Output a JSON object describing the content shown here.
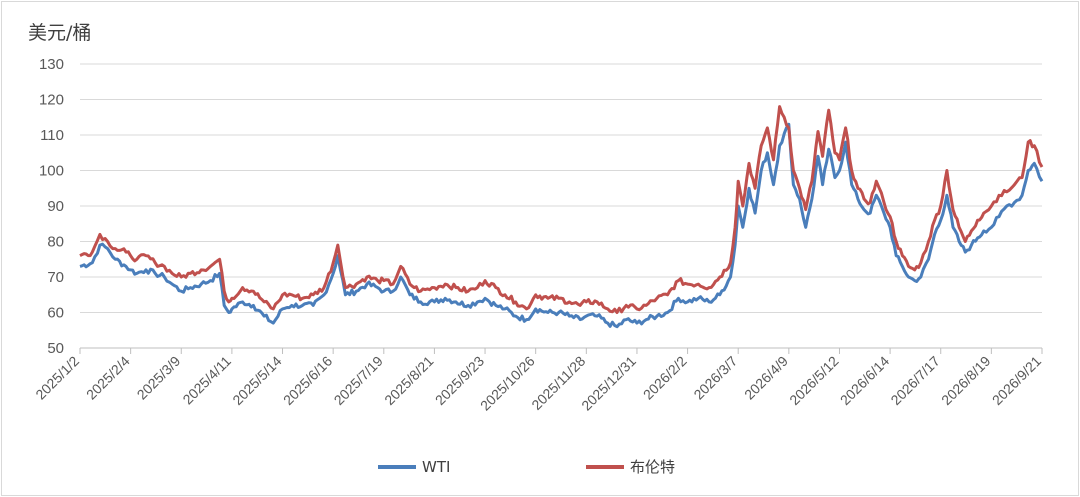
{
  "chart_data": {
    "type": "line",
    "ylabel": "美元/桶",
    "ylim": [
      50,
      130
    ],
    "yticks": [
      50,
      60,
      70,
      80,
      90,
      100,
      110,
      120,
      130
    ],
    "grid": true,
    "legend_position": "bottom",
    "x": [
      "2025/1/2",
      "2025/2/4",
      "2025/3/9",
      "2025/4/11",
      "2025/5/14",
      "2025/6/16",
      "2025/7/19",
      "2025/8/21",
      "2025/9/23",
      "2025/10/26",
      "2025/11/28",
      "2025/12/31",
      "2026/2/2",
      "2026/3/7",
      "2026/4/9",
      "2026/5/12",
      "2026/6/14",
      "2026/7/17",
      "2026/8/19",
      "2026/9/21"
    ],
    "series": [
      {
        "name": "WTI",
        "color": "#4a7ebb",
        "points": [
          [
            "2025/1/2",
            73
          ],
          [
            "2025/1/10",
            74
          ],
          [
            "2025/1/15",
            79
          ],
          [
            "2025/1/20",
            78
          ],
          [
            "2025/1/25",
            75
          ],
          [
            "2025/2/1",
            73
          ],
          [
            "2025/2/4",
            72
          ],
          [
            "2025/2/8",
            71
          ],
          [
            "2025/2/14",
            72
          ],
          [
            "2025/2/20",
            71
          ],
          [
            "2025/2/26",
            70
          ],
          [
            "2025/3/3",
            68
          ],
          [
            "2025/3/9",
            66
          ],
          [
            "2025/3/15",
            67
          ],
          [
            "2025/3/22",
            68
          ],
          [
            "2025/3/28",
            69
          ],
          [
            "2025/4/3",
            71
          ],
          [
            "2025/4/6",
            62
          ],
          [
            "2025/4/9",
            60
          ],
          [
            "2025/4/11",
            61
          ],
          [
            "2025/4/18",
            63
          ],
          [
            "2025/4/25",
            62
          ],
          [
            "2025/5/2",
            59
          ],
          [
            "2025/5/8",
            57
          ],
          [
            "2025/5/14",
            61
          ],
          [
            "2025/5/20",
            62
          ],
          [
            "2025/5/27",
            62
          ],
          [
            "2025/6/3",
            62
          ],
          [
            "2025/6/10",
            65
          ],
          [
            "2025/6/16",
            71
          ],
          [
            "2025/6/19",
            76
          ],
          [
            "2025/6/24",
            65
          ],
          [
            "2025/7/1",
            66
          ],
          [
            "2025/7/8",
            68
          ],
          [
            "2025/7/15",
            67
          ],
          [
            "2025/7/19",
            66
          ],
          [
            "2025/7/25",
            66
          ],
          [
            "2025/7/30",
            70
          ],
          [
            "2025/8/5",
            65
          ],
          [
            "2025/8/12",
            63
          ],
          [
            "2025/8/21",
            63
          ],
          [
            "2025/8/28",
            64
          ],
          [
            "2025/9/4",
            63
          ],
          [
            "2025/9/12",
            62
          ],
          [
            "2025/9/18",
            63
          ],
          [
            "2025/9/23",
            64
          ],
          [
            "2025/9/30",
            62
          ],
          [
            "2025/10/6",
            61
          ],
          [
            "2025/10/13",
            59
          ],
          [
            "2025/10/20",
            58
          ],
          [
            "2025/10/26",
            61
          ],
          [
            "2025/11/3",
            60
          ],
          [
            "2025/11/10",
            60
          ],
          [
            "2025/11/17",
            59
          ],
          [
            "2025/11/24",
            58
          ],
          [
            "2025/11/28",
            59
          ],
          [
            "2025/12/5",
            59
          ],
          [
            "2025/12/12",
            57
          ],
          [
            "2025/12/18",
            56
          ],
          [
            "2025/12/24",
            58
          ],
          [
            "2025/12/31",
            57
          ],
          [
            "2026/1/6",
            58
          ],
          [
            "2026/1/13",
            59
          ],
          [
            "2026/1/20",
            60
          ],
          [
            "2026/1/27",
            64
          ],
          [
            "2026/2/2",
            63
          ],
          [
            "2026/2/9",
            64
          ],
          [
            "2026/2/16",
            63
          ],
          [
            "2026/2/23",
            65
          ],
          [
            "2026/3/2",
            70
          ],
          [
            "2026/3/5",
            79
          ],
          [
            "2026/3/7",
            90
          ],
          [
            "2026/3/10",
            84
          ],
          [
            "2026/3/14",
            95
          ],
          [
            "2026/3/18",
            88
          ],
          [
            "2026/3/22",
            100
          ],
          [
            "2026/3/26",
            105
          ],
          [
            "2026/3/30",
            96
          ],
          [
            "2026/4/3",
            107
          ],
          [
            "2026/4/9",
            113
          ],
          [
            "2026/4/12",
            96
          ],
          [
            "2026/4/16",
            92
          ],
          [
            "2026/4/20",
            84
          ],
          [
            "2026/4/24",
            92
          ],
          [
            "2026/4/28",
            104
          ],
          [
            "2026/5/1",
            96
          ],
          [
            "2026/5/5",
            106
          ],
          [
            "2026/5/9",
            98
          ],
          [
            "2026/5/12",
            100
          ],
          [
            "2026/5/16",
            108
          ],
          [
            "2026/5/20",
            96
          ],
          [
            "2026/5/24",
            92
          ],
          [
            "2026/5/28",
            89
          ],
          [
            "2026/6/1",
            88
          ],
          [
            "2026/6/5",
            93
          ],
          [
            "2026/6/10",
            88
          ],
          [
            "2026/6/14",
            84
          ],
          [
            "2026/6/18",
            76
          ],
          [
            "2026/6/22",
            73
          ],
          [
            "2026/6/26",
            70
          ],
          [
            "2026/6/30",
            69
          ],
          [
            "2026/7/4",
            70
          ],
          [
            "2026/7/9",
            75
          ],
          [
            "2026/7/13",
            82
          ],
          [
            "2026/7/17",
            86
          ],
          [
            "2026/7/21",
            93
          ],
          [
            "2026/7/25",
            84
          ],
          [
            "2026/7/29",
            80
          ],
          [
            "2026/8/2",
            77
          ],
          [
            "2026/8/6",
            79
          ],
          [
            "2026/8/10",
            81
          ],
          [
            "2026/8/14",
            83
          ],
          [
            "2026/8/19",
            84
          ],
          [
            "2026/8/24",
            87
          ],
          [
            "2026/8/29",
            90
          ],
          [
            "2026/9/3",
            91
          ],
          [
            "2026/9/8",
            93
          ],
          [
            "2026/9/12",
            100
          ],
          [
            "2026/9/16",
            102
          ],
          [
            "2026/9/21",
            97
          ]
        ]
      },
      {
        "name": "布伦特",
        "color": "#c0504d",
        "points": [
          [
            "2025/1/2",
            76
          ],
          [
            "2025/1/10",
            77
          ],
          [
            "2025/1/15",
            82
          ],
          [
            "2025/1/20",
            80
          ],
          [
            "2025/1/25",
            78
          ],
          [
            "2025/2/1",
            77
          ],
          [
            "2025/2/4",
            76
          ],
          [
            "2025/2/8",
            75
          ],
          [
            "2025/2/14",
            76
          ],
          [
            "2025/2/20",
            74
          ],
          [
            "2025/2/26",
            73
          ],
          [
            "2025/3/3",
            71
          ],
          [
            "2025/3/9",
            70
          ],
          [
            "2025/3/15",
            71
          ],
          [
            "2025/3/22",
            72
          ],
          [
            "2025/3/28",
            73
          ],
          [
            "2025/4/3",
            75
          ],
          [
            "2025/4/6",
            66
          ],
          [
            "2025/4/9",
            63
          ],
          [
            "2025/4/11",
            64
          ],
          [
            "2025/4/18",
            67
          ],
          [
            "2025/4/25",
            66
          ],
          [
            "2025/5/2",
            63
          ],
          [
            "2025/5/8",
            61
          ],
          [
            "2025/5/14",
            65
          ],
          [
            "2025/5/20",
            65
          ],
          [
            "2025/5/27",
            64
          ],
          [
            "2025/6/3",
            65
          ],
          [
            "2025/6/10",
            67
          ],
          [
            "2025/6/16",
            74
          ],
          [
            "2025/6/19",
            79
          ],
          [
            "2025/6/24",
            67
          ],
          [
            "2025/7/1",
            68
          ],
          [
            "2025/7/8",
            70
          ],
          [
            "2025/7/15",
            69
          ],
          [
            "2025/7/19",
            69
          ],
          [
            "2025/7/25",
            68
          ],
          [
            "2025/7/30",
            73
          ],
          [
            "2025/8/5",
            68
          ],
          [
            "2025/8/12",
            66
          ],
          [
            "2025/8/21",
            67
          ],
          [
            "2025/8/28",
            68
          ],
          [
            "2025/9/4",
            67
          ],
          [
            "2025/9/12",
            66
          ],
          [
            "2025/9/18",
            67
          ],
          [
            "2025/9/23",
            69
          ],
          [
            "2025/9/30",
            67
          ],
          [
            "2025/10/6",
            65
          ],
          [
            "2025/10/13",
            63
          ],
          [
            "2025/10/20",
            61
          ],
          [
            "2025/10/26",
            65
          ],
          [
            "2025/11/3",
            64
          ],
          [
            "2025/11/10",
            64
          ],
          [
            "2025/11/17",
            63
          ],
          [
            "2025/11/24",
            62
          ],
          [
            "2025/11/28",
            63
          ],
          [
            "2025/12/5",
            63
          ],
          [
            "2025/12/12",
            61
          ],
          [
            "2025/12/18",
            60
          ],
          [
            "2025/12/24",
            62
          ],
          [
            "2025/12/31",
            61
          ],
          [
            "2026/1/6",
            62
          ],
          [
            "2026/1/13",
            64
          ],
          [
            "2026/1/20",
            65
          ],
          [
            "2026/1/27",
            69
          ],
          [
            "2026/2/2",
            68
          ],
          [
            "2026/2/9",
            68
          ],
          [
            "2026/2/16",
            67
          ],
          [
            "2026/2/23",
            70
          ],
          [
            "2026/3/2",
            74
          ],
          [
            "2026/3/5",
            84
          ],
          [
            "2026/3/7",
            97
          ],
          [
            "2026/3/10",
            90
          ],
          [
            "2026/3/14",
            102
          ],
          [
            "2026/3/18",
            95
          ],
          [
            "2026/3/22",
            107
          ],
          [
            "2026/3/26",
            112
          ],
          [
            "2026/3/30",
            103
          ],
          [
            "2026/4/3",
            118
          ],
          [
            "2026/4/9",
            112
          ],
          [
            "2026/4/12",
            100
          ],
          [
            "2026/4/16",
            95
          ],
          [
            "2026/4/20",
            89
          ],
          [
            "2026/4/24",
            97
          ],
          [
            "2026/4/28",
            111
          ],
          [
            "2026/5/1",
            104
          ],
          [
            "2026/5/5",
            117
          ],
          [
            "2026/5/9",
            105
          ],
          [
            "2026/5/12",
            103
          ],
          [
            "2026/5/16",
            112
          ],
          [
            "2026/5/20",
            100
          ],
          [
            "2026/5/24",
            95
          ],
          [
            "2026/5/28",
            92
          ],
          [
            "2026/6/1",
            91
          ],
          [
            "2026/6/5",
            97
          ],
          [
            "2026/6/10",
            91
          ],
          [
            "2026/6/14",
            87
          ],
          [
            "2026/6/18",
            80
          ],
          [
            "2026/6/22",
            76
          ],
          [
            "2026/6/26",
            73
          ],
          [
            "2026/6/30",
            72
          ],
          [
            "2026/7/4",
            74
          ],
          [
            "2026/7/9",
            80
          ],
          [
            "2026/7/13",
            86
          ],
          [
            "2026/7/17",
            90
          ],
          [
            "2026/7/21",
            100
          ],
          [
            "2026/7/25",
            89
          ],
          [
            "2026/7/29",
            84
          ],
          [
            "2026/8/2",
            80
          ],
          [
            "2026/8/6",
            83
          ],
          [
            "2026/8/10",
            86
          ],
          [
            "2026/8/14",
            88
          ],
          [
            "2026/8/19",
            90
          ],
          [
            "2026/8/24",
            93
          ],
          [
            "2026/8/29",
            94
          ],
          [
            "2026/9/3",
            96
          ],
          [
            "2026/9/8",
            98
          ],
          [
            "2026/9/12",
            108
          ],
          [
            "2026/9/16",
            107
          ],
          [
            "2026/9/21",
            101
          ]
        ]
      }
    ]
  }
}
